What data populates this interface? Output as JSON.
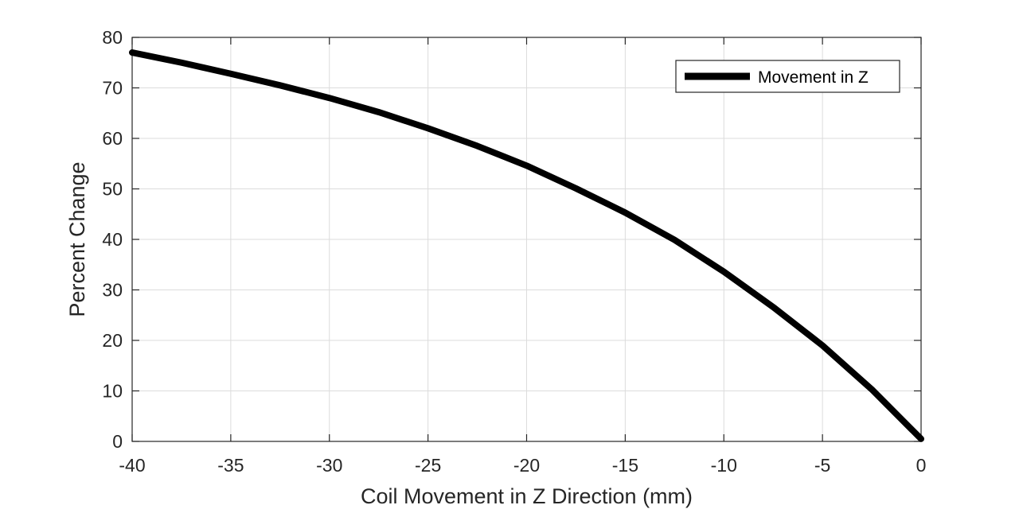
{
  "chart_data": {
    "type": "line",
    "title": "",
    "xlabel": "Coil Movement in Z Direction (mm)",
    "ylabel": "Percent Change",
    "xlim": [
      -40,
      0
    ],
    "ylim": [
      0,
      80
    ],
    "xticks": [
      -40,
      -35,
      -30,
      -25,
      -20,
      -15,
      -10,
      -5,
      0
    ],
    "yticks": [
      0,
      10,
      20,
      30,
      40,
      50,
      60,
      70,
      80
    ],
    "xtick_labels": [
      "-40",
      "-35",
      "-30",
      "-25",
      "-20",
      "-15",
      "-10",
      "-5",
      "0"
    ],
    "ytick_labels": [
      "0",
      "10",
      "20",
      "30",
      "40",
      "50",
      "60",
      "70",
      "80"
    ],
    "grid": true,
    "legend_position": "top-right",
    "series": [
      {
        "name": "Movement in Z",
        "color": "#000000",
        "x": [
          -40,
          -37.5,
          -35,
          -32.5,
          -30,
          -27.5,
          -25,
          -22.5,
          -20,
          -17.5,
          -15,
          -12.5,
          -10,
          -7.5,
          -5,
          -2.5,
          0
        ],
        "y": [
          77,
          75,
          72.8,
          70.5,
          68,
          65.2,
          62,
          58.5,
          54.6,
          50.1,
          45.3,
          39.9,
          33.6,
          26.6,
          19,
          10.3,
          0.5
        ]
      }
    ]
  }
}
